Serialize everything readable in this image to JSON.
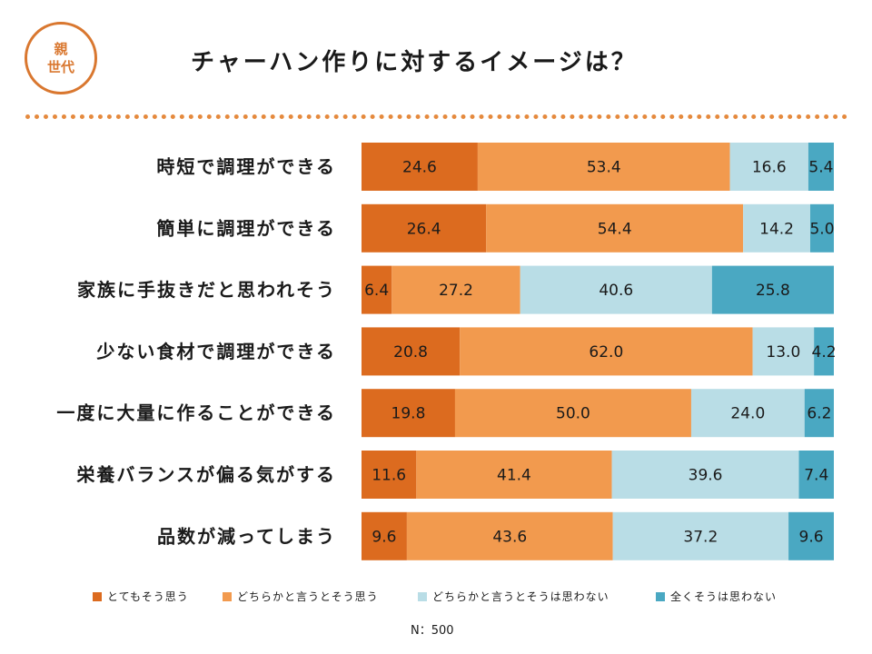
{
  "header": {
    "badge_line1": "親",
    "badge_line2": "世代",
    "title": "チャーハン作りに対するイメージは？"
  },
  "chart_data": {
    "type": "bar",
    "orientation": "horizontal",
    "stacked": true,
    "title": "チャーハン作りに対するイメージは？",
    "categories": [
      "時短で調理ができる",
      "簡単に調理ができる",
      "家族に手抜きだと思われそう",
      "少ない食材で調理ができる",
      "一度に大量に作ることができる",
      "栄養バランスが偏る気がする",
      "品数が減ってしまう"
    ],
    "series": [
      {
        "name": "とてもそう思う",
        "color": "#dc6b1f",
        "values": [
          24.6,
          26.4,
          6.4,
          20.8,
          19.8,
          11.6,
          9.6
        ]
      },
      {
        "name": "どちらかと言うとそう思う",
        "color": "#f29a4e",
        "values": [
          53.4,
          54.4,
          27.2,
          62.0,
          50.0,
          41.4,
          43.6
        ]
      },
      {
        "name": "どちらかと言うとそうは思わない",
        "color": "#b9dde6",
        "values": [
          16.6,
          14.2,
          40.6,
          13.0,
          24.0,
          39.6,
          37.2
        ]
      },
      {
        "name": "全くそうは思わない",
        "color": "#4aa8c2",
        "values": [
          5.4,
          5.0,
          25.8,
          4.2,
          6.2,
          7.4,
          9.6
        ]
      }
    ],
    "value_labels": [
      [
        "24.6",
        "53.4",
        "16.6",
        "5.4"
      ],
      [
        "26.4",
        "54.4",
        "14.2",
        "5.0"
      ],
      [
        "6.4",
        "27.2",
        "40.6",
        "25.8"
      ],
      [
        "20.8",
        "62.0",
        "13.0",
        "4.2"
      ],
      [
        "19.8",
        "50.0",
        "24.0",
        "6.2"
      ],
      [
        "11.6",
        "41.4",
        "39.6",
        "7.4"
      ],
      [
        "9.6",
        "43.6",
        "37.2",
        "9.6"
      ]
    ],
    "xlim": [
      0,
      100
    ],
    "legend": "bottom",
    "note": "N：500"
  }
}
